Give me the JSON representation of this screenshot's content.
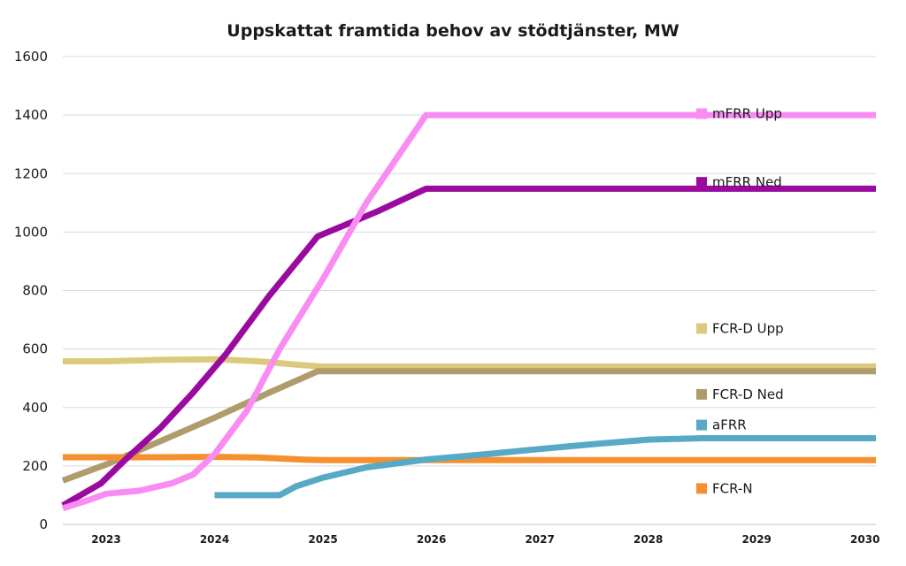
{
  "chart_data": {
    "type": "line",
    "title": "Uppskattat framtida behov av stödtjänster, MW",
    "xlabel": "",
    "ylabel": "",
    "xlim": [
      2022.6,
      2030.1
    ],
    "ylim": [
      0,
      1600
    ],
    "y_ticks": [
      0,
      200,
      400,
      600,
      800,
      1000,
      1200,
      1400,
      1600
    ],
    "x_ticks": [
      2023,
      2024,
      2025,
      2026,
      2027,
      2028,
      2029,
      2030
    ],
    "grid": "horizontal",
    "legend_placement": "right, beside line ends",
    "series": [
      {
        "name": "mFRR Upp",
        "color": "#f98cf2",
        "x": [
          2022.6,
          2022.85,
          2023.0,
          2023.3,
          2023.6,
          2023.8,
          2024.0,
          2024.3,
          2024.6,
          2025.0,
          2025.4,
          2025.95,
          2026.5,
          2027,
          2028,
          2029,
          2030.1
        ],
        "y": [
          55,
          85,
          105,
          115,
          140,
          170,
          240,
          390,
          600,
          840,
          1100,
          1400,
          1400,
          1400,
          1400,
          1400,
          1400
        ]
      },
      {
        "name": "mFRR Ned",
        "color": "#9b0a9e",
        "x": [
          2022.6,
          2022.95,
          2023.2,
          2023.5,
          2023.8,
          2024.1,
          2024.5,
          2024.95,
          2025.5,
          2025.95,
          2026.5,
          2027,
          2028,
          2029,
          2030.1
        ],
        "y": [
          65,
          140,
          230,
          330,
          450,
          580,
          780,
          985,
          1070,
          1148,
          1148,
          1148,
          1148,
          1148,
          1148
        ]
      },
      {
        "name": "FCR-D Upp",
        "color": "#ddc97d",
        "x": [
          2022.6,
          2023.0,
          2023.5,
          2024.0,
          2024.4,
          2024.8,
          2025.0,
          2026,
          2027,
          2028,
          2029,
          2030.1
        ],
        "y": [
          558,
          558,
          563,
          565,
          558,
          545,
          540,
          540,
          540,
          540,
          540,
          540
        ]
      },
      {
        "name": "FCR-D Ned",
        "color": "#b09b6a",
        "x": [
          2022.6,
          2023.0,
          2023.5,
          2024.0,
          2024.5,
          2024.95,
          2026,
          2027,
          2028,
          2029,
          2030.1
        ],
        "y": [
          150,
          205,
          285,
          365,
          450,
          524,
          524,
          524,
          524,
          524,
          524
        ]
      },
      {
        "name": "aFRR",
        "color": "#58a9c6",
        "x": [
          2024.0,
          2024.6,
          2024.75,
          2025.0,
          2025.4,
          2025.95,
          2026.5,
          2027.0,
          2027.5,
          2028.0,
          2028.5,
          2029,
          2030.1
        ],
        "y": [
          100,
          100,
          130,
          160,
          195,
          222,
          240,
          258,
          275,
          290,
          295,
          295,
          295
        ]
      },
      {
        "name": "FCR-N",
        "color": "#f4902f",
        "x": [
          2022.6,
          2023.0,
          2023.5,
          2024.0,
          2024.4,
          2024.8,
          2025.0,
          2026,
          2027,
          2028,
          2029,
          2030.1
        ],
        "y": [
          230,
          230,
          230,
          231,
          229,
          222,
          220,
          220,
          220,
          220,
          220,
          220
        ]
      }
    ],
    "legend": [
      {
        "name": "mFRR Upp",
        "color": "#f98cf2",
        "y_anchor": 1405
      },
      {
        "name": "mFRR Ned",
        "color": "#9b0a9e",
        "y_anchor": 1170
      },
      {
        "name": "FCR-D Upp",
        "color": "#ddc97d",
        "y_anchor": 670
      },
      {
        "name": "FCR-D Ned",
        "color": "#b09b6a",
        "y_anchor": 445
      },
      {
        "name": "aFRR",
        "color": "#58a9c6",
        "y_anchor": 340
      },
      {
        "name": "FCR-N",
        "color": "#f4902f",
        "y_anchor": 123
      }
    ]
  }
}
